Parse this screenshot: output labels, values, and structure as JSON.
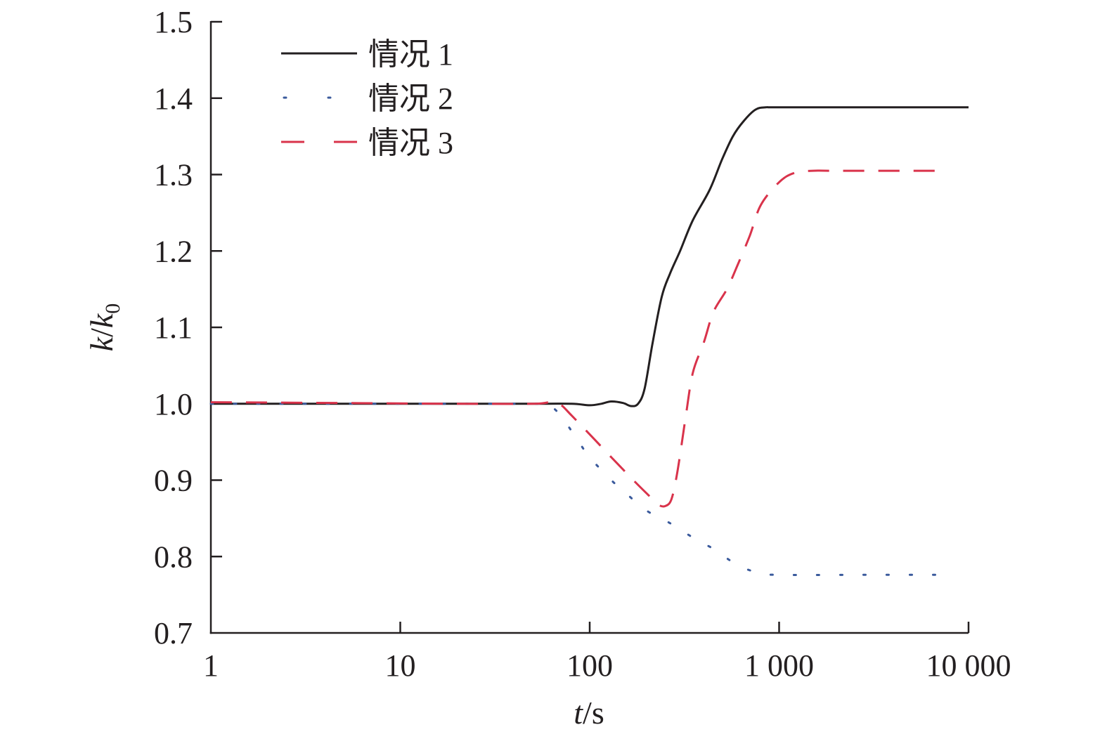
{
  "chart_data": {
    "type": "line",
    "xscale": "log",
    "xlim": [
      1,
      10000
    ],
    "ylim": [
      0.7,
      1.5
    ],
    "xticks": [
      1,
      10,
      100,
      1000,
      10000
    ],
    "xtick_labels": [
      "1",
      "10",
      "100",
      "1 000",
      "10 000"
    ],
    "yticks": [
      0.7,
      0.8,
      0.9,
      1.0,
      1.1,
      1.2,
      1.3,
      1.4,
      1.5
    ],
    "ytick_labels": [
      "0.7",
      "0.8",
      "0.9",
      "1.0",
      "1.1",
      "1.2",
      "1.3",
      "1.4",
      "1.5"
    ],
    "xlabel": {
      "var": "t",
      "unit": "/s"
    },
    "ylabel": {
      "var1": "k",
      "sep": "/",
      "var2": "k",
      "sub": "0"
    },
    "legend": {
      "position": "top-left"
    },
    "grid": false,
    "series": [
      {
        "name": "情况 1",
        "color": "#231f20",
        "style": "solid",
        "points": [
          [
            1,
            1.0
          ],
          [
            10,
            1.0
          ],
          [
            50,
            1.0
          ],
          [
            80,
            1.0
          ],
          [
            100,
            0.998
          ],
          [
            115,
            1.0
          ],
          [
            130,
            1.003
          ],
          [
            150,
            1.001
          ],
          [
            165,
            0.997
          ],
          [
            180,
            1.0
          ],
          [
            195,
            1.02
          ],
          [
            215,
            1.08
          ],
          [
            240,
            1.14
          ],
          [
            265,
            1.17
          ],
          [
            300,
            1.2
          ],
          [
            350,
            1.24
          ],
          [
            430,
            1.28
          ],
          [
            500,
            1.32
          ],
          [
            570,
            1.35
          ],
          [
            650,
            1.37
          ],
          [
            750,
            1.385
          ],
          [
            850,
            1.388
          ],
          [
            1000,
            1.388
          ],
          [
            3000,
            1.388
          ],
          [
            10000,
            1.388
          ]
        ]
      },
      {
        "name": "情况 2",
        "color": "#3a5a9c",
        "style": "dotted",
        "points": [
          [
            1,
            1.0
          ],
          [
            10,
            1.0
          ],
          [
            50,
            1.0
          ],
          [
            60,
            0.999
          ],
          [
            70,
            0.985
          ],
          [
            85,
            0.955
          ],
          [
            100,
            0.93
          ],
          [
            130,
            0.9
          ],
          [
            160,
            0.88
          ],
          [
            200,
            0.86
          ],
          [
            260,
            0.845
          ],
          [
            350,
            0.825
          ],
          [
            450,
            0.81
          ],
          [
            550,
            0.795
          ],
          [
            650,
            0.785
          ],
          [
            800,
            0.778
          ],
          [
            1000,
            0.776
          ],
          [
            3000,
            0.776
          ],
          [
            7000,
            0.776
          ]
        ]
      },
      {
        "name": "情况 3",
        "color": "#d9334b",
        "style": "dashed",
        "points": [
          [
            1,
            1.002
          ],
          [
            5,
            1.001
          ],
          [
            20,
            1.0
          ],
          [
            50,
            1.0
          ],
          [
            62,
            1.002
          ],
          [
            70,
            0.999
          ],
          [
            80,
            0.985
          ],
          [
            100,
            0.96
          ],
          [
            130,
            0.93
          ],
          [
            170,
            0.9
          ],
          [
            205,
            0.88
          ],
          [
            230,
            0.868
          ],
          [
            250,
            0.866
          ],
          [
            270,
            0.875
          ],
          [
            290,
            0.91
          ],
          [
            320,
            0.98
          ],
          [
            350,
            1.04
          ],
          [
            400,
            1.08
          ],
          [
            450,
            1.12
          ],
          [
            530,
            1.15
          ],
          [
            600,
            1.18
          ],
          [
            700,
            1.22
          ],
          [
            800,
            1.26
          ],
          [
            1000,
            1.29
          ],
          [
            1200,
            1.302
          ],
          [
            1500,
            1.305
          ],
          [
            2000,
            1.305
          ],
          [
            7000,
            1.305
          ]
        ]
      }
    ]
  }
}
